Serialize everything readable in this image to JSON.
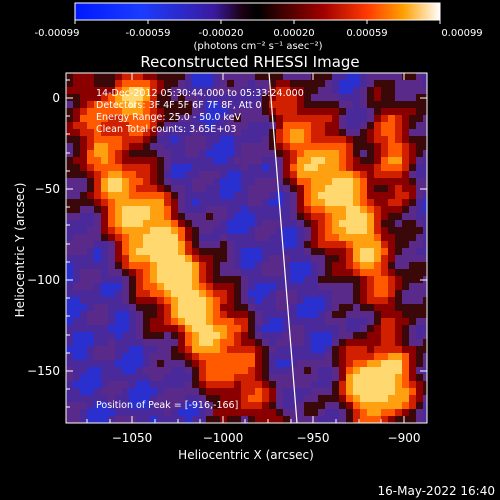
{
  "colorbar": {
    "tick_labels": [
      "-0.00099",
      "-0.00059",
      "-0.00020",
      "0.00020",
      "0.00059",
      "0.00099"
    ],
    "unit_label": "(photons cm⁻² s⁻¹ asec⁻²)"
  },
  "plot": {
    "title": "Reconstructed RHESSI Image",
    "xlabel": "Heliocentric X (arcsec)",
    "ylabel": "Heliocentric Y (arcsec)",
    "x_ticks": [
      "−1050",
      "−1000",
      "−950",
      "−900"
    ],
    "y_ticks": [
      "0",
      "−50",
      "−100",
      "−150"
    ],
    "info_lines": [
      "14-Dec-2012 05:30:44.000 to 05:33:24.000",
      "Detectors: 3F 4F 5F 6F 7F 8F, Att 0",
      "Energy Range: 25.0 - 50.0 keV",
      "Clean     Total counts: 3.65E+03"
    ],
    "peak_label": "Position of Peak = [-916,-166]"
  },
  "footer": {
    "timestamp": "16-May-2022 16:40"
  },
  "palette": {
    "background": "#000000",
    "axis": "#ffffff"
  }
}
